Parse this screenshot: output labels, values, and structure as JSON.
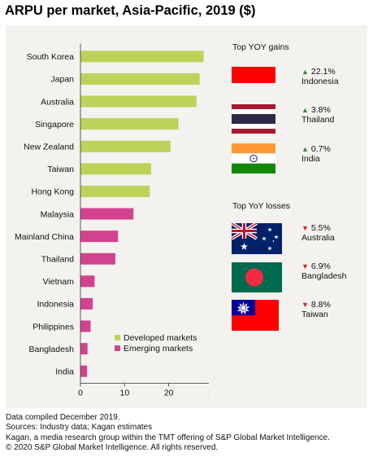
{
  "title": "ARPU per market, Asia-Pacific, 2019 ($)",
  "colors": {
    "developed": "#bcd35a",
    "emerging": "#d3428f",
    "panel": "#f3f2ef",
    "gain": "#2e8b3d",
    "loss": "#d0201b"
  },
  "chart_data": {
    "type": "bar",
    "orientation": "horizontal",
    "categories": [
      "South Korea",
      "Japan",
      "Australia",
      "Singapore",
      "New Zealand",
      "Taiwan",
      "Hong Kong",
      "Malaysia",
      "Mainland China",
      "Thailand",
      "Vietnam",
      "Indonesia",
      "Philippines",
      "Bangladesh",
      "India"
    ],
    "values": [
      27.9,
      27.0,
      26.3,
      22.2,
      20.4,
      16.0,
      15.7,
      12.0,
      8.5,
      7.9,
      3.2,
      2.8,
      2.3,
      1.6,
      1.5
    ],
    "groups": [
      "developed",
      "developed",
      "developed",
      "developed",
      "developed",
      "developed",
      "developed",
      "emerging",
      "emerging",
      "emerging",
      "emerging",
      "emerging",
      "emerging",
      "emerging",
      "emerging"
    ],
    "xlim": [
      0,
      30
    ],
    "xticks": [
      "0",
      "10",
      "20",
      "30"
    ],
    "legend": [
      {
        "key": "developed",
        "label": "Developed markets"
      },
      {
        "key": "emerging",
        "label": "Emerging markets"
      }
    ],
    "legend_position": "bottom-right"
  },
  "gains": {
    "heading": "Top YOY gains",
    "items": [
      {
        "change": "22.1%",
        "country": "Indonesia",
        "flag": "indonesia-flag"
      },
      {
        "change": "3.8%",
        "country": "Thailand",
        "flag": "thailand-flag"
      },
      {
        "change": "0.7%",
        "country": "India",
        "flag": "india-flag"
      }
    ]
  },
  "losses": {
    "heading": "Top YoY losses",
    "items": [
      {
        "change": "5.5%",
        "country": "Australia",
        "flag": "australia-flag"
      },
      {
        "change": "6.9%",
        "country": "Bangladesh",
        "flag": "bangladesh-flag"
      },
      {
        "change": "8.8%",
        "country": "Taiwan",
        "flag": "taiwan-flag"
      }
    ]
  },
  "symbols": {
    "up": "▲",
    "down": "▼"
  },
  "footer": [
    "Data compiled December 2019.",
    "Sources: Industry data; Kagan estimates",
    "Kagan, a media research group within the TMT offering of S&P Global Market Intelligence.",
    "© 2020 S&P Global Market Intelligence. All rights reserved."
  ]
}
